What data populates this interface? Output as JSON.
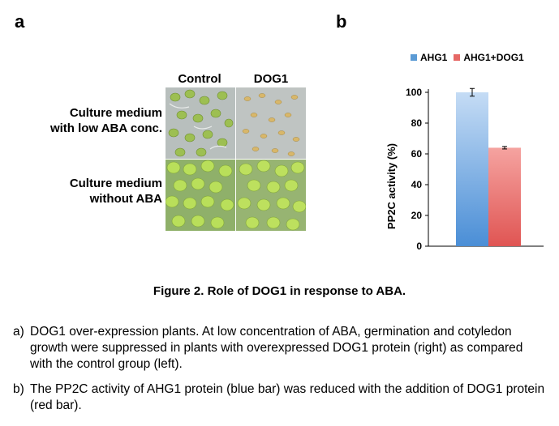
{
  "panel_a": {
    "label": "a",
    "columns": [
      "Control",
      "DOG1"
    ],
    "rows": [
      "Culture medium\nwith low ABA conc.",
      "Culture medium\nwithout ABA"
    ]
  },
  "panel_b": {
    "label": "b",
    "legend": [
      {
        "name": "AHG1",
        "color": "#5b9bd5"
      },
      {
        "name": "AHG1+DOG1",
        "color": "#e66865"
      }
    ]
  },
  "chart_data": {
    "type": "bar",
    "categories": [
      "AHG1",
      "AHG1+DOG1"
    ],
    "values": [
      100,
      64
    ],
    "errors": [
      2.5,
      0.8
    ],
    "colors": [
      "#5b9bd5",
      "#e66865"
    ],
    "ylabel": "PP2C activity (%)",
    "ylim": [
      0,
      100
    ],
    "yticks": [
      "0",
      "20",
      "40",
      "60",
      "80",
      "100"
    ],
    "grid": false
  },
  "caption": {
    "title": "Figure 2. Role of DOG1 in response to ABA.",
    "items": [
      {
        "mark": "a)",
        "text": "DOG1 over-expression plants. At low concentration of ABA, germination and cotyledon growth were suppressed in plants with overexpressed DOG1 protein (right) as compared with the control group (left)."
      },
      {
        "mark": "b)",
        "text": "The PP2C activity of AHG1 protein (blue bar) was reduced with the addition of DOG1 protein (red bar)."
      }
    ]
  }
}
